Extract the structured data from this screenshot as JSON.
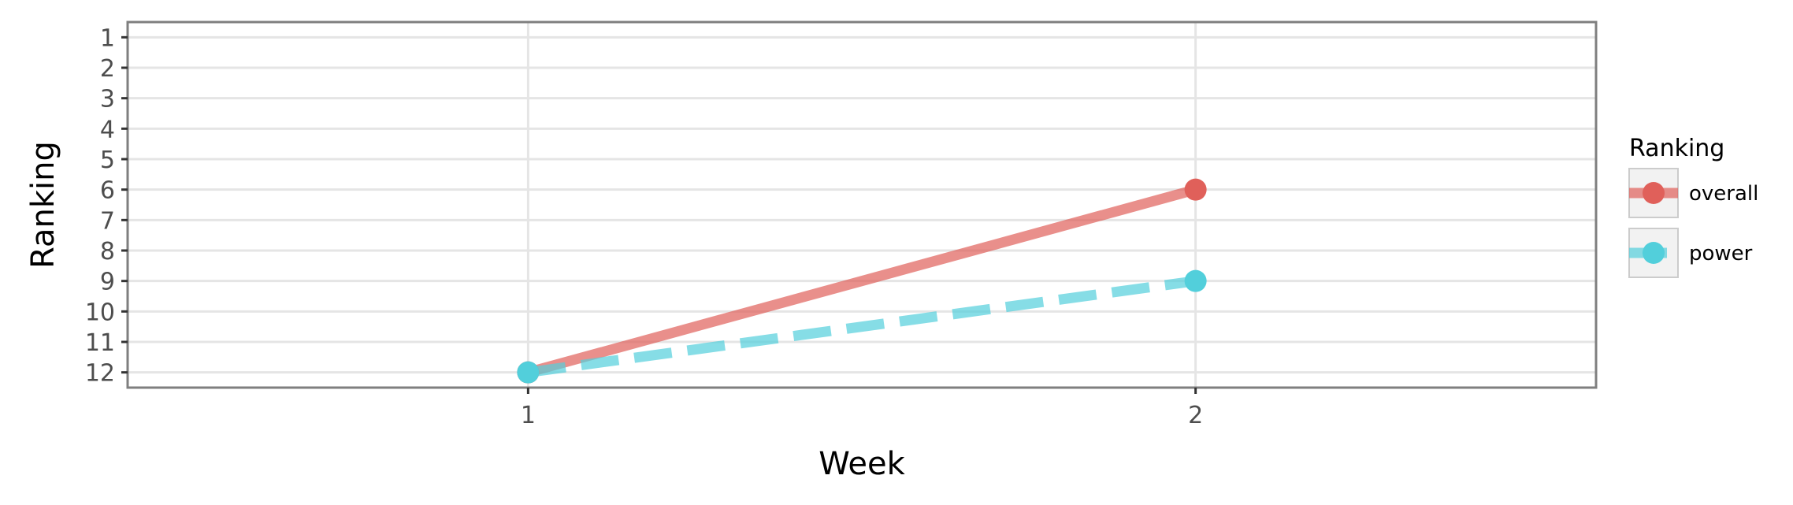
{
  "chart_data": {
    "type": "line",
    "xlabel": "Week",
    "ylabel": "Ranking",
    "x": [
      1,
      2
    ],
    "x_ticks": [
      1,
      2
    ],
    "xlim": [
      0.4,
      2.6
    ],
    "y_ticks": [
      1,
      2,
      3,
      4,
      5,
      6,
      7,
      8,
      9,
      10,
      11,
      12
    ],
    "ylim": [
      12.5,
      0.5
    ],
    "y_reversed": true,
    "grid": true,
    "legend": {
      "title": "Ranking",
      "placement": "right"
    },
    "series": [
      {
        "name": "overall",
        "values": [
          12,
          6
        ],
        "color": "#e0605a",
        "dash": "solid"
      },
      {
        "name": "power",
        "values": [
          12,
          9
        ],
        "color": "#52cfdb",
        "dash": "dashed"
      }
    ]
  }
}
